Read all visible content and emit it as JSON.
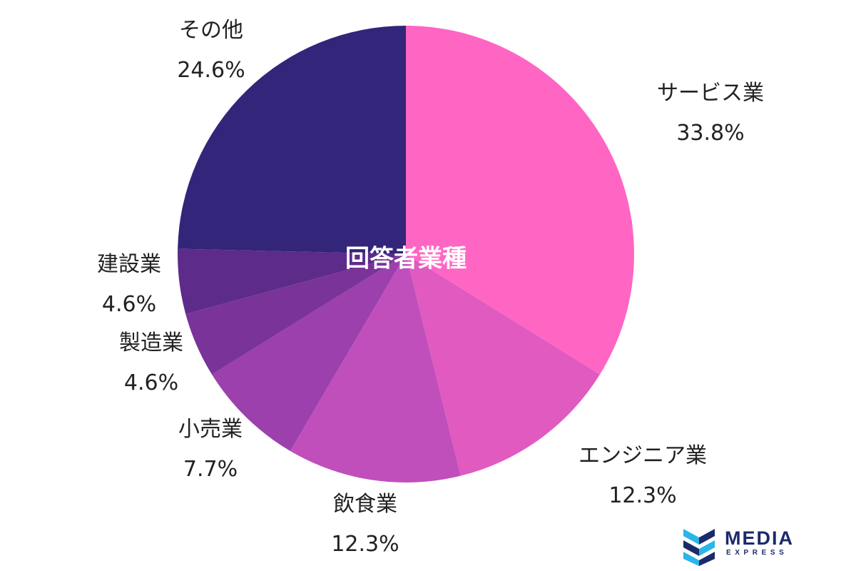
{
  "chart_data": {
    "type": "pie",
    "title": "回答者業種",
    "slices": [
      {
        "label": "サービス業",
        "value": 33.8,
        "display": "33.8%",
        "color": "#ff66c4"
      },
      {
        "label": "エンジニア業",
        "value": 12.3,
        "display": "12.3%",
        "color": "#e05ac0"
      },
      {
        "label": "飲食業",
        "value": 12.3,
        "display": "12.3%",
        "color": "#c04fbb"
      },
      {
        "label": "小売業",
        "value": 7.7,
        "display": "7.7%",
        "color": "#9b40ad"
      },
      {
        "label": "製造業",
        "value": 4.6,
        "display": "4.6%",
        "color": "#7a3398"
      },
      {
        "label": "建設業",
        "value": 4.6,
        "display": "4.6%",
        "color": "#5d2b8a"
      },
      {
        "label": "その他",
        "value": 24.6,
        "display": "24.6%",
        "color": "#32257a"
      }
    ]
  },
  "logo": {
    "word": "MEDIA",
    "sub": "EXPRESS",
    "color": "#1b2a6b",
    "accent": "#2bb5e8"
  }
}
